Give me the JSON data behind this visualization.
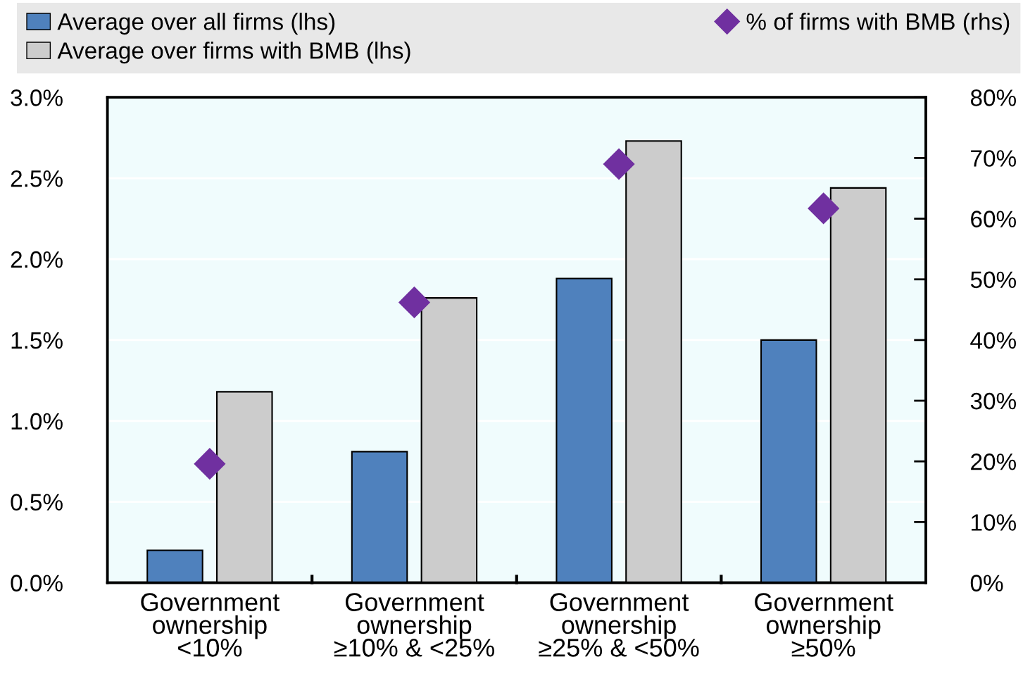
{
  "chart_data": {
    "type": "bar",
    "categories": [
      "Government\nownership\n<10%",
      "Government\nownership\n≥10% & <25%",
      "Government\nownership\n≥25% & <50%",
      "Government\nownership\n≥50%"
    ],
    "series": [
      {
        "name": "Average over all firms (lhs)",
        "color": "#4f81bd",
        "values": [
          0.2,
          0.81,
          1.88,
          1.5
        ]
      },
      {
        "name": "Average over firms with BMB (lhs)",
        "color": "#cccccc",
        "values": [
          1.18,
          1.76,
          2.73,
          2.44
        ]
      },
      {
        "name": "% of firms with BMB (rhs)",
        "type": "scatter",
        "axis": "y2",
        "marker": "diamond",
        "color": "#7030a0",
        "values": [
          19.6,
          46.2,
          69.0,
          61.7
        ]
      }
    ],
    "ylim": [
      0,
      3.0
    ],
    "yticks": [
      {
        "value": 0,
        "label": "0.0%"
      },
      {
        "value": 0.5,
        "label": "0.5%"
      },
      {
        "value": 1.0,
        "label": "1.0%"
      },
      {
        "value": 1.5,
        "label": "1.5%"
      },
      {
        "value": 2.0,
        "label": "2.0%"
      },
      {
        "value": 2.5,
        "label": "2.5%"
      },
      {
        "value": 3.0,
        "label": "3.0%"
      }
    ],
    "y2lim": [
      0,
      80
    ],
    "y2ticks": [
      {
        "value": 0,
        "label": "0%"
      },
      {
        "value": 10,
        "label": "10%"
      },
      {
        "value": 20,
        "label": "20%"
      },
      {
        "value": 30,
        "label": "30%"
      },
      {
        "value": 40,
        "label": "40%"
      },
      {
        "value": 50,
        "label": "50%"
      },
      {
        "value": 60,
        "label": "60%"
      },
      {
        "value": 70,
        "label": "70%"
      },
      {
        "value": 80,
        "label": "80%"
      }
    ],
    "grid": "y",
    "legend": "top"
  }
}
